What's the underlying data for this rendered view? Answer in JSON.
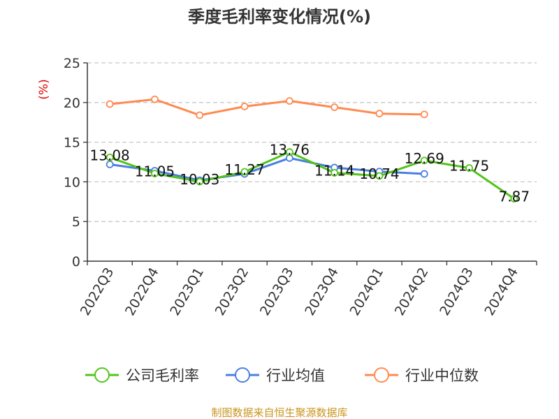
{
  "chart_data": {
    "type": "line",
    "title": "季度毛利率变化情况(%)",
    "ylabel": "(%)",
    "xlabel": "",
    "ylim": [
      0,
      25
    ],
    "yticks": [
      0,
      5,
      10,
      15,
      20,
      25
    ],
    "grid": true,
    "legend_position": "bottom",
    "categories": [
      "2022Q3",
      "2022Q4",
      "2023Q1",
      "2023Q2",
      "2023Q3",
      "2023Q4",
      "2024Q1",
      "2024Q2",
      "2024Q3",
      "2024Q4"
    ],
    "series": [
      {
        "name": "公司毛利率",
        "color": "#52c41a",
        "values": [
          13.08,
          11.05,
          10.03,
          11.27,
          13.76,
          11.14,
          10.74,
          12.69,
          11.75,
          7.87
        ],
        "labels": [
          "13.08",
          "11.05",
          "10.03",
          "11.27",
          "13.76",
          "11.14",
          "10.74",
          "12.69",
          "11.75",
          "7.87"
        ]
      },
      {
        "name": "行业均值",
        "color": "#4a7fe0",
        "values": [
          12.2,
          11.4,
          10.2,
          11.0,
          13.0,
          11.8,
          11.3,
          11.0,
          null,
          null
        ]
      },
      {
        "name": "行业中位数",
        "color": "#ff8a50",
        "values": [
          19.8,
          20.4,
          18.4,
          19.5,
          20.2,
          19.4,
          18.6,
          18.5,
          null,
          null
        ]
      }
    ]
  },
  "source": "制图数据来自恒生聚源数据库"
}
